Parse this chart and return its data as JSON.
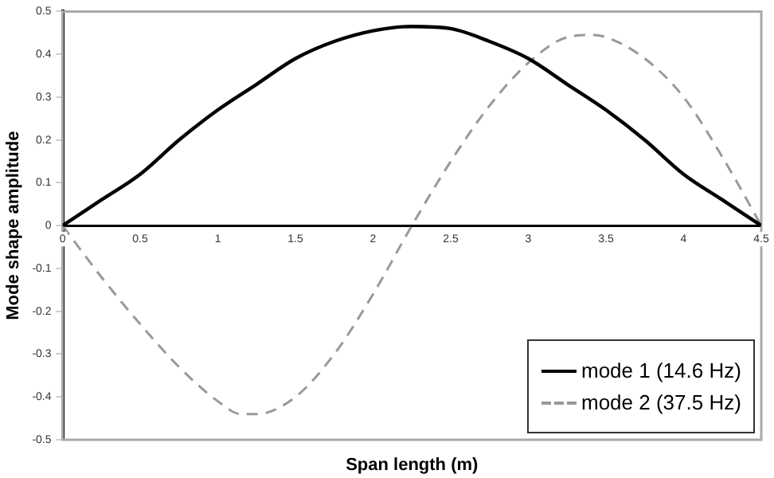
{
  "chart_data": {
    "type": "line",
    "xlabel": "Span length (m)",
    "ylabel": "Mode shape amplitude",
    "xlim": [
      0,
      4.5
    ],
    "xticks": [
      0,
      0.5,
      1,
      1.5,
      2,
      2.5,
      3,
      3.5,
      4,
      4.5
    ],
    "ylim": [
      -0.5,
      0.5
    ],
    "yticks": [
      -0.5,
      -0.4,
      -0.3,
      -0.2,
      -0.1,
      0,
      0.1,
      0.2,
      0.3,
      0.4,
      0.5
    ],
    "grid": false,
    "legend": "bottom right",
    "marker": "none",
    "series": [
      {
        "name": "mode 1 (14.6 Hz)",
        "color": "#000000",
        "line_style": "solid",
        "x": [
          0,
          0.25,
          0.5,
          0.75,
          1,
          1.25,
          1.5,
          1.75,
          2,
          2.25,
          2.5,
          2.75,
          3,
          3.25,
          3.5,
          3.75,
          4,
          4.25,
          4.5
        ],
        "values": [
          0,
          0.06,
          0.12,
          0.2,
          0.27,
          0.33,
          0.39,
          0.43,
          0.455,
          0.465,
          0.46,
          0.43,
          0.39,
          0.33,
          0.27,
          0.2,
          0.12,
          0.06,
          0
        ]
      },
      {
        "name": "mode 2 (37.5 Hz)",
        "color": "#999999",
        "line_style": "dashed",
        "x": [
          0,
          0.25,
          0.5,
          0.75,
          1,
          1.15,
          1.25,
          1.5,
          1.75,
          2,
          2.25,
          2.5,
          2.75,
          3,
          3.25,
          3.4,
          3.5,
          3.75,
          4,
          4.25,
          4.5
        ],
        "values": [
          0,
          -0.12,
          -0.23,
          -0.33,
          -0.41,
          -0.44,
          -0.44,
          -0.4,
          -0.3,
          -0.16,
          0,
          0.15,
          0.28,
          0.38,
          0.44,
          0.445,
          0.44,
          0.39,
          0.3,
          0.16,
          0
        ]
      }
    ]
  }
}
